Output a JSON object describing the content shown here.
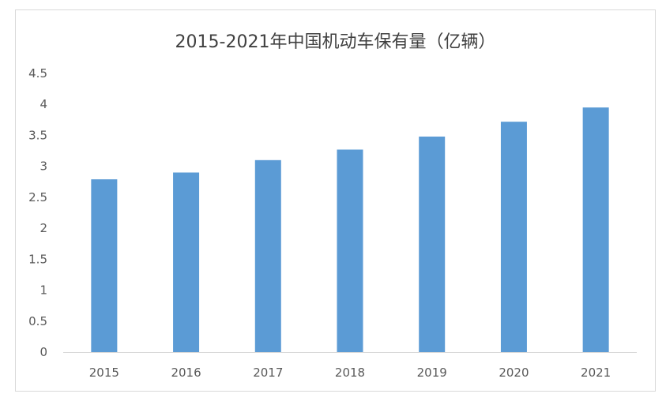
{
  "chart_data": {
    "type": "bar",
    "title": "2015-2021年中国机动车保有量（亿辆）",
    "categories": [
      "2015",
      "2016",
      "2017",
      "2018",
      "2019",
      "2020",
      "2021"
    ],
    "series": [
      {
        "values": [
          2.79,
          2.9,
          3.1,
          3.27,
          3.48,
          3.72,
          3.95
        ]
      }
    ],
    "y_ticks": [
      "0",
      "0.5",
      "1",
      "1.5",
      "2",
      "2.5",
      "3",
      "3.5",
      "4",
      "4.5"
    ],
    "ylim": [
      0,
      4.5
    ],
    "bar_color": "#5b9bd5",
    "axis_color": "#d9d9d9",
    "gridlines": false,
    "legend": "none"
  }
}
